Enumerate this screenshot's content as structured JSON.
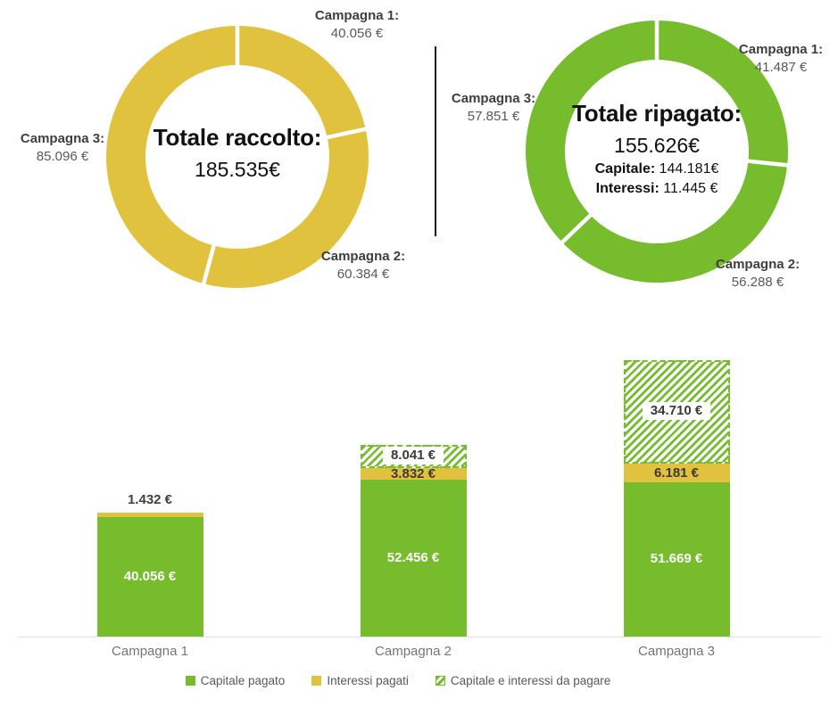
{
  "colors": {
    "green": "#76BC2D",
    "yellow": "#E1C23E",
    "text_dark": "#3F3F3F",
    "text_gray": "#595959",
    "axis_line": "#E2E2E2"
  },
  "chart_data": [
    {
      "type": "pie",
      "variant": "donut",
      "color": "#E1C23E",
      "center": {
        "title": "Totale raccolto:",
        "total": "185.535€"
      },
      "labels": [
        "Campagna 1:",
        "Campagna 2:",
        "Campagna 3:"
      ],
      "values": [
        40056,
        60384,
        85096
      ],
      "value_labels": [
        "40.056 €",
        "60.384 €",
        "85.096 €"
      ]
    },
    {
      "type": "pie",
      "variant": "donut",
      "color": "#76BC2D",
      "center": {
        "title": "Totale ripagato:",
        "total": "155.626€",
        "detail_lines": [
          {
            "label": "Capitale:",
            "value": " 144.181€"
          },
          {
            "label": "Interessi:",
            "value": " 11.445 €"
          }
        ]
      },
      "labels": [
        "Campagna 1:",
        "Campagna 2:",
        "Campagna 3:"
      ],
      "values": [
        41487,
        56288,
        57851
      ],
      "value_labels": [
        "41.487 €",
        "56.288 €",
        "57.851 €"
      ]
    },
    {
      "type": "bar",
      "stacked": true,
      "grid": false,
      "legend_position": "bottom",
      "categories": [
        "Campagna 1",
        "Campagna 2",
        "Campagna 3"
      ],
      "series": [
        {
          "name": "Capitale pagato",
          "style": "solid-green",
          "values": [
            40056,
            52456,
            51669
          ],
          "labels": [
            "40.056 €",
            "52.456 €",
            "51.669 €"
          ]
        },
        {
          "name": "Interessi pagati",
          "style": "solid-yellow",
          "values": [
            1432,
            3832,
            6181
          ],
          "labels": [
            "1.432 €",
            "3.832 €",
            "6.181 €"
          ]
        },
        {
          "name": "Capitale e interessi da pagare",
          "style": "hatched-green",
          "values": [
            0,
            8041,
            34710
          ],
          "labels": [
            "",
            "8.041 €",
            "34.710 €"
          ]
        }
      ],
      "legend": [
        "Capitale pagato",
        "Interessi pagati",
        "Capitale e interessi da pagare"
      ]
    }
  ]
}
